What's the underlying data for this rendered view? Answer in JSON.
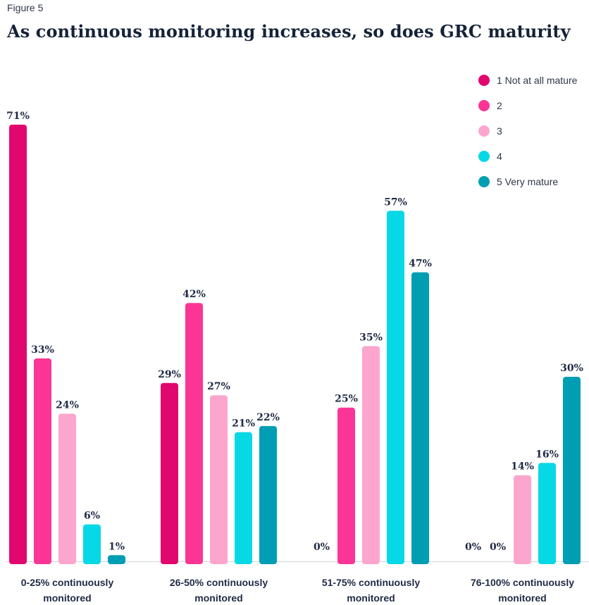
{
  "figure_label": "Figure 5",
  "chart_data": {
    "type": "bar",
    "title": "As continuous monitoring increases, so does GRC maturity",
    "xlabel": "",
    "ylabel": "",
    "ylim": [
      0,
      71
    ],
    "grid": false,
    "legend_position": "top-right",
    "categories": [
      [
        "0-25% continuously",
        "monitored"
      ],
      [
        "26-50% continuously",
        "monitored"
      ],
      [
        "51-75% continuously",
        "monitored"
      ],
      [
        "76-100% continuously",
        "monitored"
      ]
    ],
    "series": [
      {
        "name": "1 Not at all mature",
        "color": "#e0086f",
        "values": [
          71,
          29,
          0,
          0
        ],
        "labels": [
          "71%",
          "29%",
          "0%",
          "0%"
        ]
      },
      {
        "name": "2",
        "color": "#fa3595",
        "values": [
          33,
          42,
          25,
          0
        ],
        "labels": [
          "33%",
          "42%",
          "25%",
          "0%"
        ]
      },
      {
        "name": "3",
        "color": "#fca6cd",
        "values": [
          24,
          27,
          35,
          14
        ],
        "labels": [
          "24%",
          "27%",
          "35%",
          "14%"
        ]
      },
      {
        "name": "4",
        "color": "#07d8e6",
        "values": [
          6,
          21,
          57,
          16
        ],
        "labels": [
          "6%",
          "21%",
          "57%",
          "16%"
        ]
      },
      {
        "name": "5 Very mature",
        "color": "#009eb3",
        "values": [
          1,
          22,
          47,
          30
        ],
        "labels": [
          "1%",
          "22%",
          "47%",
          "30%"
        ]
      }
    ]
  }
}
